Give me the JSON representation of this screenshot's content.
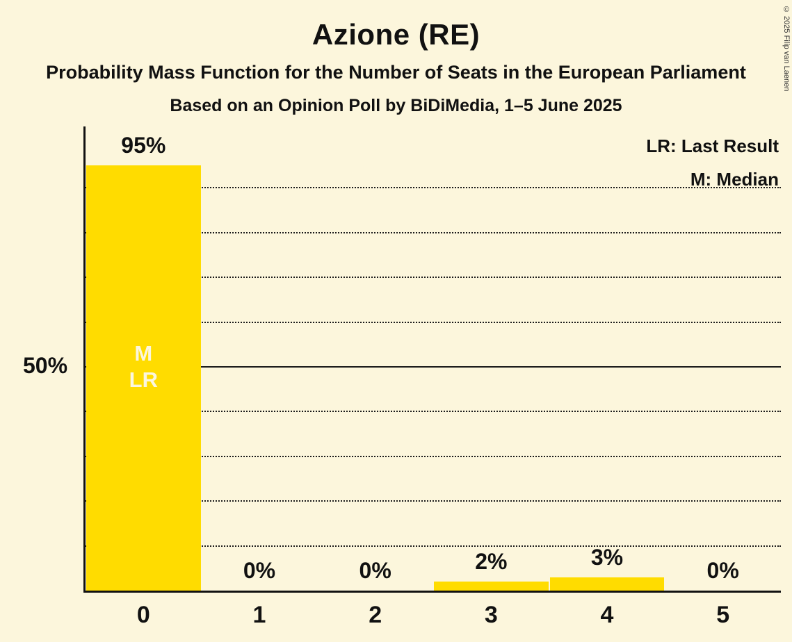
{
  "page": {
    "title": "Azione (RE)",
    "subtitle": "Probability Mass Function for the Number of Seats in the European Parliament",
    "source_line": "Based on an Opinion Poll by BiDiMedia, 1–5 June 2025",
    "copyright": "© 2025 Filip van Laenen"
  },
  "legend": {
    "lr": "LR: Last Result",
    "m": "M: Median"
  },
  "chart_data": {
    "type": "bar",
    "title": "Azione (RE)",
    "categories": [
      "0",
      "1",
      "2",
      "3",
      "4",
      "5"
    ],
    "values": [
      95,
      0,
      0,
      2,
      3,
      0
    ],
    "value_labels": [
      "95%",
      "0%",
      "0%",
      "2%",
      "3%",
      "0%"
    ],
    "bar_inner_labels": [
      [
        "M",
        "LR"
      ],
      [],
      [],
      [],
      [],
      []
    ],
    "y_axis_label": "50%",
    "ylim": [
      0,
      100
    ],
    "solid_gridline": 50,
    "dotted_gridlines": [
      10,
      20,
      30,
      40,
      60,
      70,
      80,
      90
    ],
    "legend_entries": [
      "LR: Last Result",
      "M: Median"
    ],
    "bar_color": "#FFDC00",
    "background_color": "#FCF6DC",
    "text_color": "#111111",
    "inner_label_color": "#FBF6DF"
  }
}
